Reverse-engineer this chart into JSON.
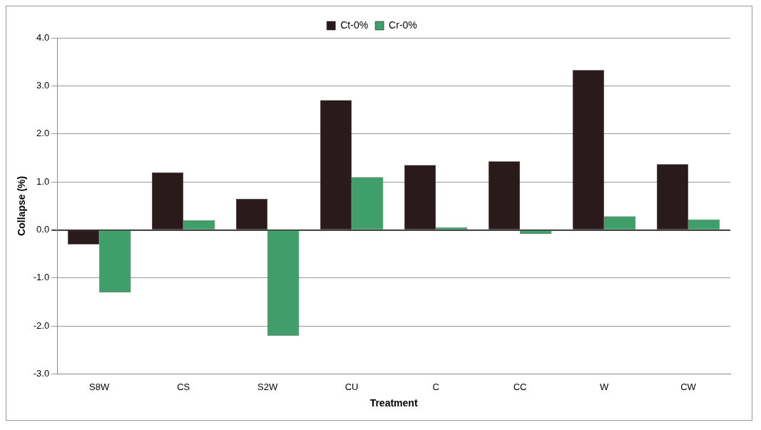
{
  "chart_data": {
    "type": "bar",
    "xlabel": "Treatment",
    "ylabel": "Collapse (%)",
    "categories": [
      "S8W",
      "CS",
      "S2W",
      "CU",
      "C",
      "CC",
      "W",
      "CW"
    ],
    "series": [
      {
        "name": "Ct-0%",
        "color": "#2b1a1c",
        "values": [
          -0.3,
          1.2,
          0.65,
          2.7,
          1.35,
          1.43,
          3.33,
          1.37
        ]
      },
      {
        "name": "Cr-0%",
        "color": "#3f9e6a",
        "values": [
          -1.3,
          0.2,
          -2.2,
          1.1,
          0.05,
          -0.08,
          0.28,
          0.22
        ]
      }
    ],
    "ylim": [
      -3,
      4
    ],
    "yticks": [
      {
        "value": -3,
        "label": "-3.0"
      },
      {
        "value": -2,
        "label": "-2.0"
      },
      {
        "value": -1,
        "label": "-1.0"
      },
      {
        "value": 0,
        "label": "0.0"
      },
      {
        "value": 1,
        "label": "1.0"
      },
      {
        "value": 2,
        "label": "2.0"
      },
      {
        "value": 3,
        "label": "3.0"
      },
      {
        "value": 4,
        "label": "4.0"
      }
    ],
    "grid": "y",
    "legend": "top"
  }
}
